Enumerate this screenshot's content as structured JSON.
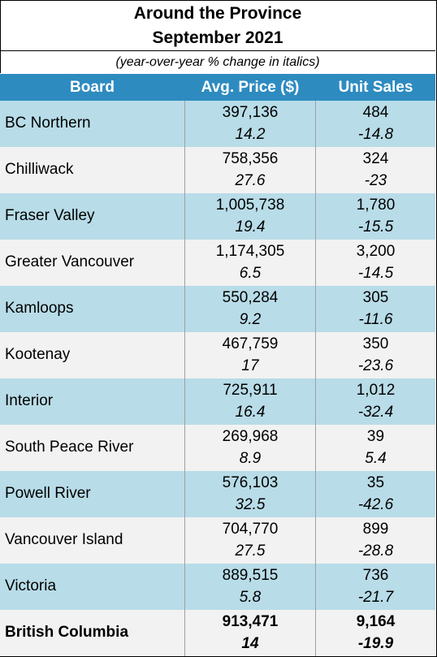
{
  "title_line1": "Around the Province",
  "title_line2": "September  2021",
  "subtitle": "(year-over-year % change in italics)",
  "headers": {
    "board": "Board",
    "price": "Avg. Price ($)",
    "sales": "Unit Sales"
  },
  "rows": [
    {
      "board": "BC Northern",
      "price": "397,136",
      "price_change": "14.2",
      "sales": "484",
      "sales_change": "-14.8"
    },
    {
      "board": "Chilliwack",
      "price": "758,356",
      "price_change": "27.6",
      "sales": "324",
      "sales_change": "-23"
    },
    {
      "board": "Fraser Valley",
      "price": "1,005,738",
      "price_change": "19.4",
      "sales": "1,780",
      "sales_change": "-15.5"
    },
    {
      "board": "Greater Vancouver",
      "price": "1,174,305",
      "price_change": "6.5",
      "sales": "3,200",
      "sales_change": "-14.5"
    },
    {
      "board": "Kamloops",
      "price": "550,284",
      "price_change": "9.2",
      "sales": "305",
      "sales_change": "-11.6"
    },
    {
      "board": "Kootenay",
      "price": "467,759",
      "price_change": "17",
      "sales": "350",
      "sales_change": "-23.6"
    },
    {
      "board": "Interior",
      "price": "725,911",
      "price_change": "16.4",
      "sales": "1,012",
      "sales_change": "-32.4"
    },
    {
      "board": "South Peace River",
      "price": "269,968",
      "price_change": "8.9",
      "sales": "39",
      "sales_change": "5.4"
    },
    {
      "board": "Powell River",
      "price": "576,103",
      "price_change": "32.5",
      "sales": "35",
      "sales_change": "-42.6"
    },
    {
      "board": "Vancouver Island",
      "price": "704,770",
      "price_change": "27.5",
      "sales": "899",
      "sales_change": "-28.8"
    },
    {
      "board": "Victoria",
      "price": "889,515",
      "price_change": "5.8",
      "sales": "736",
      "sales_change": "-21.7"
    },
    {
      "board": "British Columbia",
      "price": "913,471",
      "price_change": "14",
      "sales": "9,164",
      "sales_change": "-19.9"
    }
  ],
  "colors": {
    "header": "#2e8bc0",
    "row_blue": "#b8dce8",
    "row_grey": "#f2f2f2"
  }
}
